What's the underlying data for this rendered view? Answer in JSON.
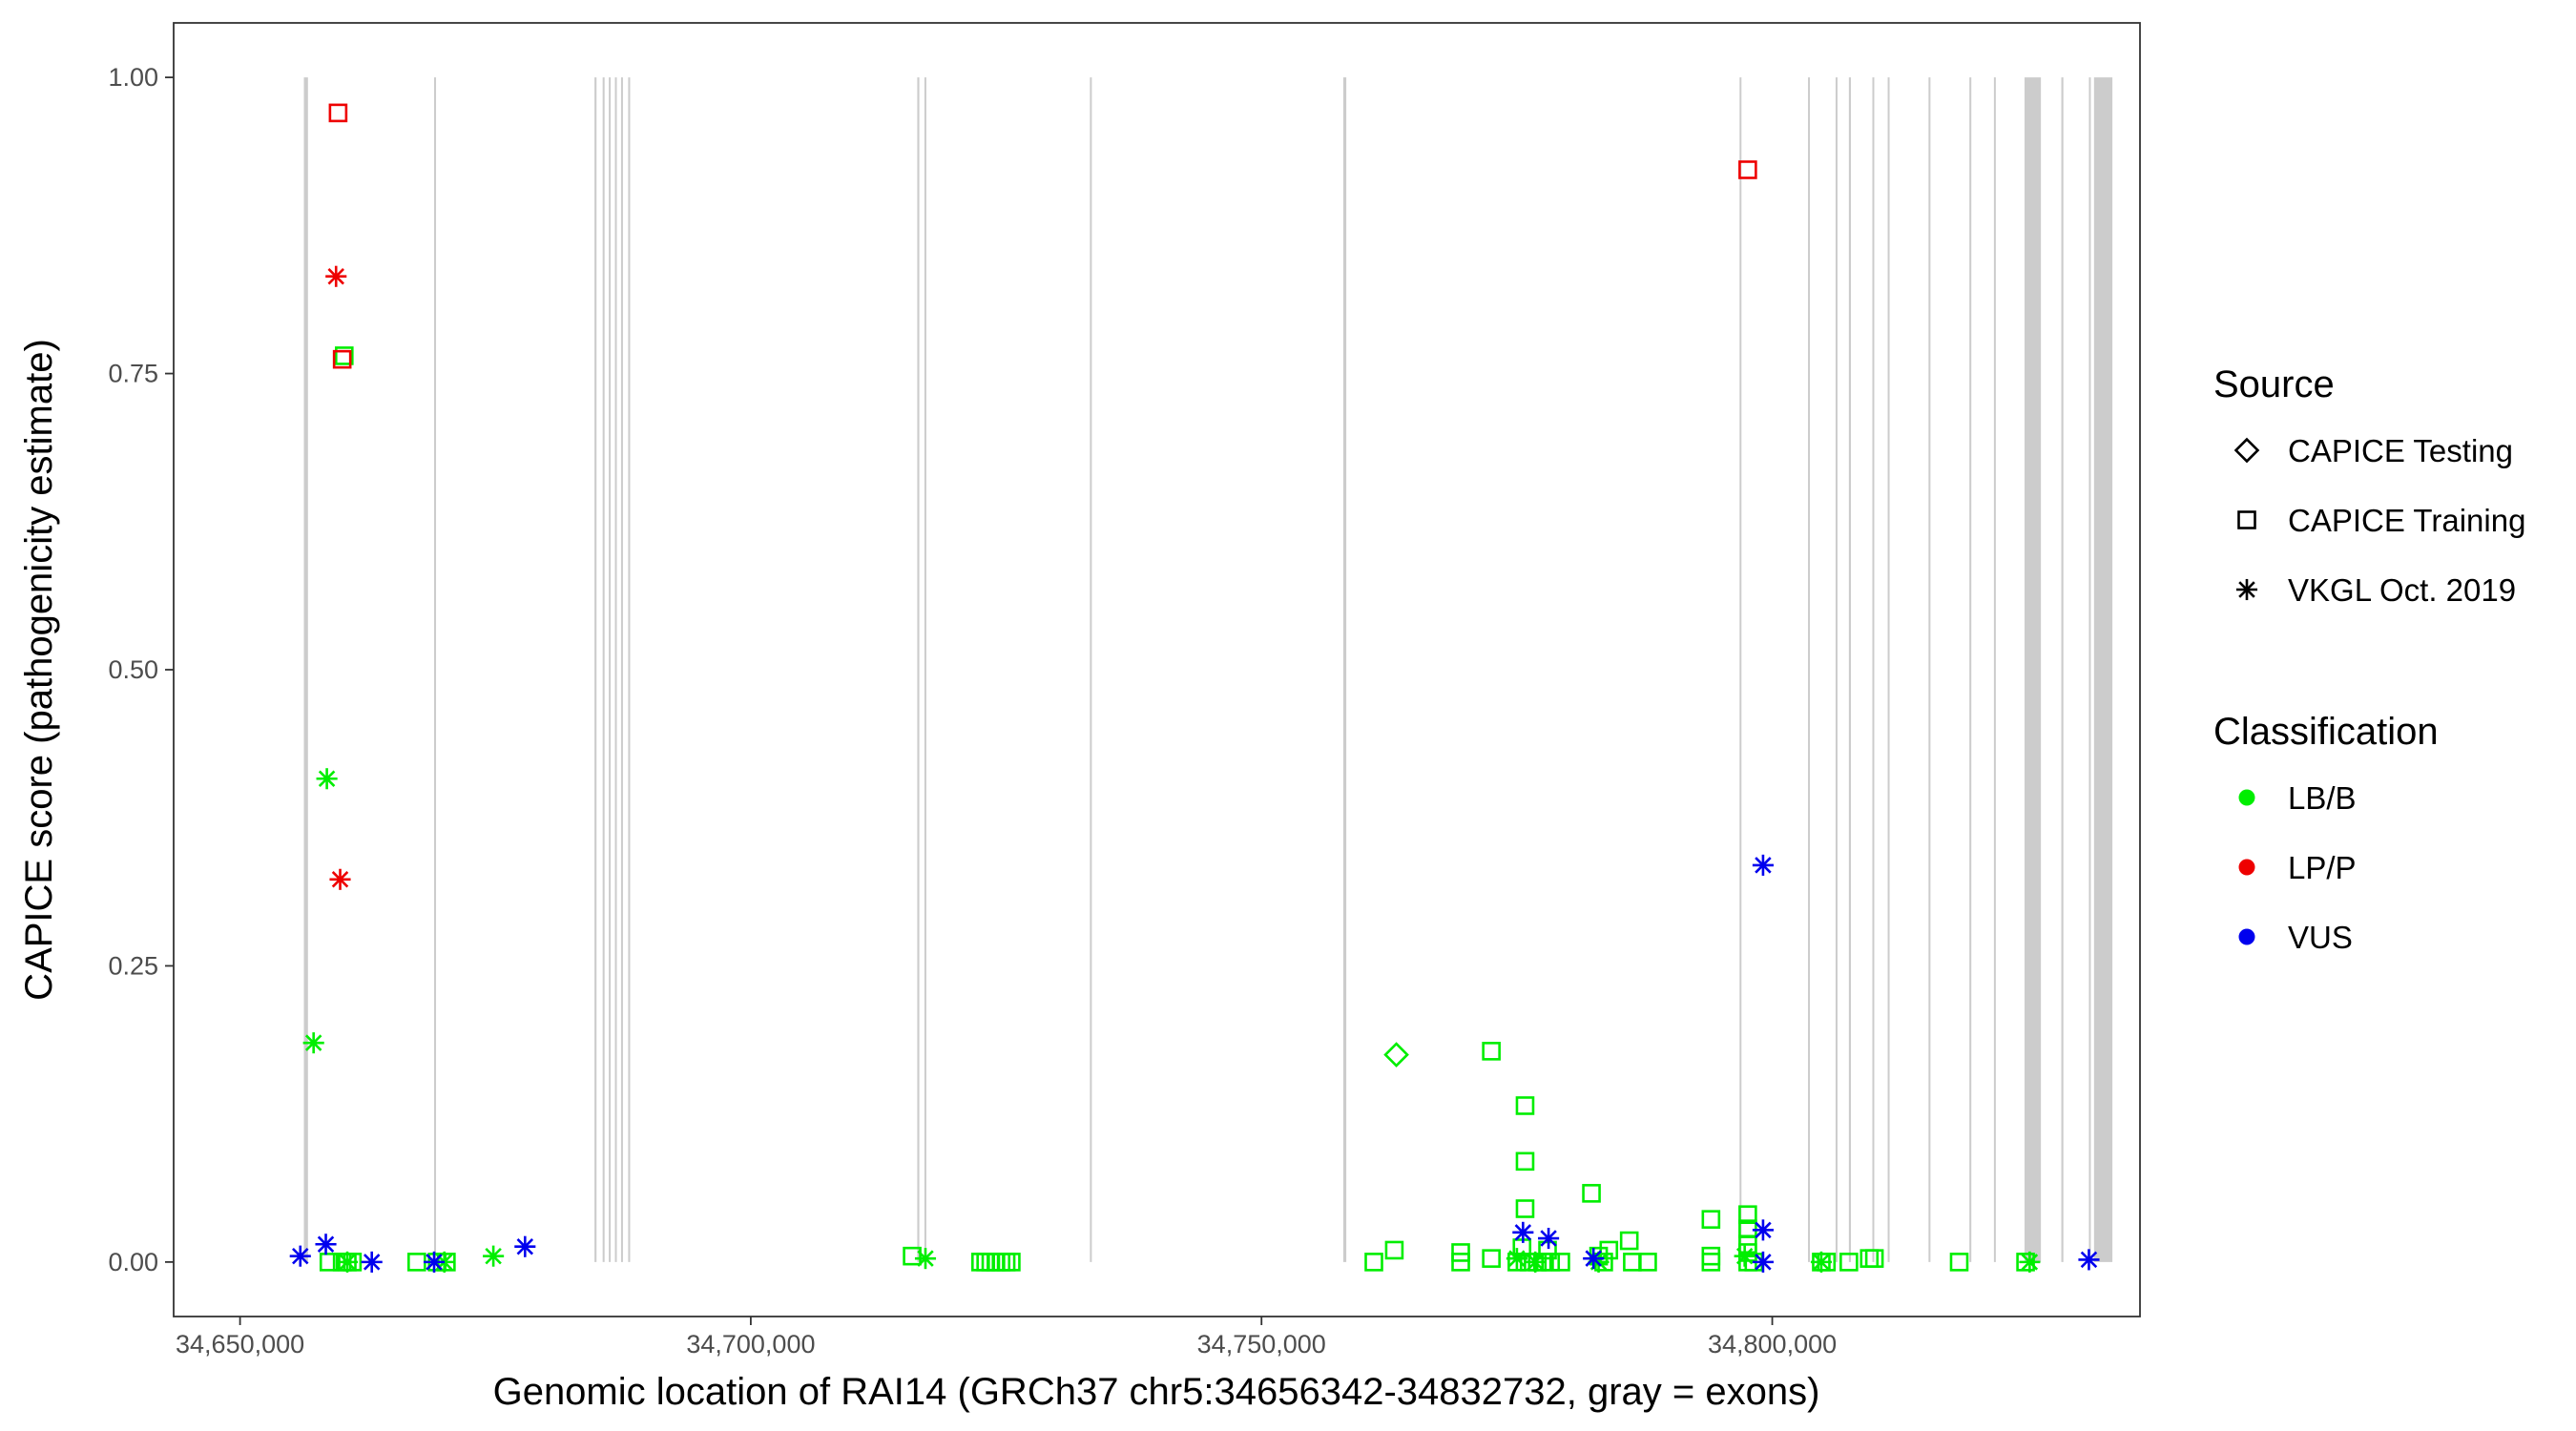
{
  "chart_data": {
    "type": "scatter",
    "title": "",
    "xlabel": "Genomic location of RAI14 (GRCh37 chr5:34656342-34832732, gray = exons)",
    "ylabel": "CAPICE score (pathogenicity estimate)",
    "xlim": [
      34643500,
      34836000
    ],
    "ylim": [
      -0.046,
      1.046
    ],
    "x_ticks": [
      34650000,
      34700000,
      34750000,
      34800000
    ],
    "x_tick_labels": [
      "34,650,000",
      "34,700,000",
      "34,750,000",
      "34,800,000"
    ],
    "y_ticks": [
      0,
      0.25,
      0.5,
      0.75,
      1.0
    ],
    "y_tick_labels": [
      "0.00",
      "0.25",
      "0.50",
      "0.75",
      "1.00"
    ],
    "grid": false,
    "exons": [
      [
        34656250,
        34656650
      ],
      [
        34669000,
        34669100
      ],
      [
        34684700,
        34684900
      ],
      [
        34685500,
        34685600
      ],
      [
        34686100,
        34686200
      ],
      [
        34686700,
        34686800
      ],
      [
        34687300,
        34687400
      ],
      [
        34688000,
        34688100
      ],
      [
        34716300,
        34716500
      ],
      [
        34717000,
        34717100
      ],
      [
        34733200,
        34733300
      ],
      [
        34758000,
        34758300
      ],
      [
        34796800,
        34796900
      ],
      [
        34803500,
        34803600
      ],
      [
        34806200,
        34806300
      ],
      [
        34807500,
        34807700
      ],
      [
        34809800,
        34809900
      ],
      [
        34811300,
        34811400
      ],
      [
        34815300,
        34815400
      ],
      [
        34819300,
        34819400
      ],
      [
        34821700,
        34821800
      ],
      [
        34824700,
        34826300
      ],
      [
        34828300,
        34828500
      ],
      [
        34831000,
        34831100
      ],
      [
        34831500,
        34833300
      ]
    ],
    "legend": {
      "position": "right",
      "source": {
        "title": "Source",
        "items": [
          {
            "label": "CAPICE Testing",
            "shape": "diamond"
          },
          {
            "label": "CAPICE Training",
            "shape": "square"
          },
          {
            "label": "VKGL Oct. 2019",
            "shape": "asterisk"
          }
        ]
      },
      "classification": {
        "title": "Classification",
        "items": [
          {
            "label": "LB/B",
            "color": "#00ee00"
          },
          {
            "label": "LP/P",
            "color": "#ee0000"
          },
          {
            "label": "VUS",
            "color": "#0000ee"
          }
        ]
      }
    },
    "series": [
      {
        "class": "LB/B",
        "source": "CAPICE Training",
        "points": [
          [
            34660200,
            0.765
          ],
          [
            34658700,
            0.0
          ],
          [
            34660000,
            0.0
          ],
          [
            34660500,
            0.0
          ],
          [
            34661000,
            0.0
          ],
          [
            34667300,
            0.0
          ],
          [
            34669300,
            0.0
          ],
          [
            34670200,
            0.0
          ],
          [
            34715800,
            0.005
          ],
          [
            34722500,
            0.0
          ],
          [
            34723000,
            0.0
          ],
          [
            34723500,
            0.0
          ],
          [
            34724000,
            0.0
          ],
          [
            34724500,
            0.0
          ],
          [
            34725000,
            0.0
          ],
          [
            34725500,
            0.0
          ],
          [
            34761000,
            0.0
          ],
          [
            34763000,
            0.01
          ],
          [
            34769500,
            0.008
          ],
          [
            34769500,
            0.0
          ],
          [
            34772500,
            0.178
          ],
          [
            34772500,
            0.003
          ],
          [
            34775800,
            0.132
          ],
          [
            34775800,
            0.085
          ],
          [
            34775800,
            0.045
          ],
          [
            34775500,
            0.012
          ],
          [
            34775000,
            0.0
          ],
          [
            34776200,
            0.0
          ],
          [
            34777000,
            0.0
          ],
          [
            34777500,
            0.0
          ],
          [
            34778000,
            0.01
          ],
          [
            34778300,
            0.0
          ],
          [
            34779300,
            0.0
          ],
          [
            34782300,
            0.058
          ],
          [
            34783000,
            0.005
          ],
          [
            34783500,
            0.0
          ],
          [
            34784000,
            0.01
          ],
          [
            34786000,
            0.018
          ],
          [
            34786300,
            0.0
          ],
          [
            34787800,
            0.0
          ],
          [
            34794000,
            0.036
          ],
          [
            34794000,
            0.005
          ],
          [
            34794000,
            0.0
          ],
          [
            34797600,
            0.04
          ],
          [
            34797600,
            0.028
          ],
          [
            34797600,
            0.015
          ],
          [
            34797600,
            0.008
          ],
          [
            34797600,
            0.0
          ],
          [
            34798200,
            0.0
          ],
          [
            34804800,
            0.0
          ],
          [
            34805300,
            0.0
          ],
          [
            34807500,
            0.0
          ],
          [
            34809500,
            0.003
          ],
          [
            34810000,
            0.003
          ],
          [
            34818300,
            0.0
          ],
          [
            34824800,
            0.0
          ]
        ]
      },
      {
        "class": "LB/B",
        "source": "CAPICE Testing",
        "points": [
          [
            34763200,
            0.175
          ]
        ]
      },
      {
        "class": "LB/B",
        "source": "VKGL Oct. 2019",
        "points": [
          [
            34657200,
            0.185
          ],
          [
            34658500,
            0.408
          ],
          [
            34660500,
            0.0
          ],
          [
            34670000,
            0.0
          ],
          [
            34674800,
            0.005
          ],
          [
            34717100,
            0.003
          ],
          [
            34775000,
            0.003
          ],
          [
            34776800,
            0.0
          ],
          [
            34783000,
            0.0
          ],
          [
            34797300,
            0.005
          ],
          [
            34804800,
            0.0
          ],
          [
            34825200,
            0.0
          ]
        ]
      },
      {
        "class": "LP/P",
        "source": "CAPICE Training",
        "points": [
          [
            34659600,
            0.97
          ],
          [
            34660000,
            0.762
          ],
          [
            34797600,
            0.922
          ]
        ]
      },
      {
        "class": "LP/P",
        "source": "VKGL Oct. 2019",
        "points": [
          [
            34659400,
            0.832
          ],
          [
            34659800,
            0.323
          ]
        ]
      },
      {
        "class": "VUS",
        "source": "VKGL Oct. 2019",
        "points": [
          [
            34655900,
            0.005
          ],
          [
            34658400,
            0.015
          ],
          [
            34662900,
            0.0
          ],
          [
            34669000,
            0.0
          ],
          [
            34677900,
            0.013
          ],
          [
            34775600,
            0.025
          ],
          [
            34778100,
            0.02
          ],
          [
            34782500,
            0.003
          ],
          [
            34799100,
            0.335
          ],
          [
            34799100,
            0.027
          ],
          [
            34799100,
            0.0
          ],
          [
            34831000,
            0.002
          ]
        ]
      }
    ]
  }
}
